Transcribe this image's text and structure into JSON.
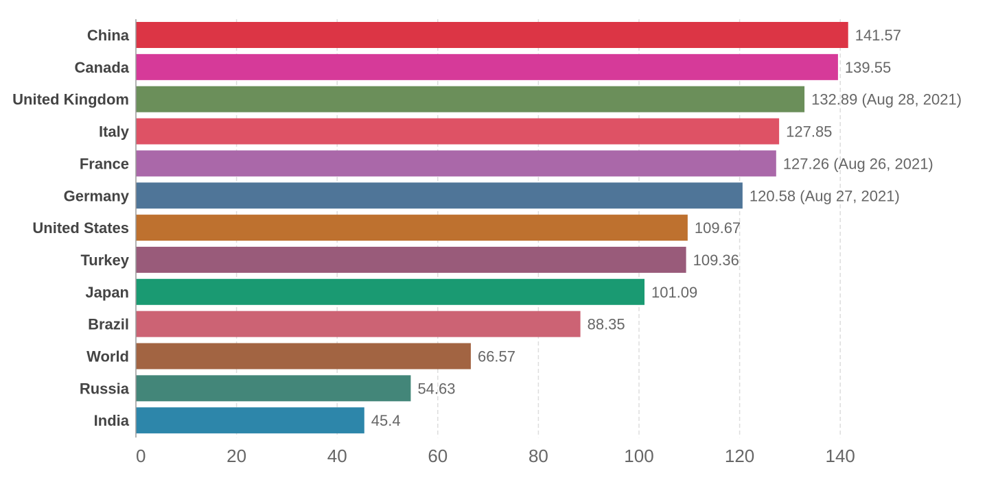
{
  "chart_data": {
    "type": "bar",
    "orientation": "horizontal",
    "title": "",
    "xlabel": "",
    "ylabel": "",
    "xlim": [
      0,
      142
    ],
    "ticks": [
      0,
      20,
      40,
      60,
      80,
      100,
      120,
      140
    ],
    "grid": true,
    "legend": "none",
    "bars": [
      {
        "category": "China",
        "value": 141.57,
        "label": "141.57",
        "color": "#dc3545"
      },
      {
        "category": "Canada",
        "value": 139.55,
        "label": "139.55",
        "color": "#d63a99"
      },
      {
        "category": "United Kingdom",
        "value": 132.89,
        "label": "132.89 (Aug 28, 2021)",
        "color": "#6b8f5a"
      },
      {
        "category": "Italy",
        "value": 127.85,
        "label": "127.85",
        "color": "#de5265"
      },
      {
        "category": "France",
        "value": 127.26,
        "label": "127.26 (Aug 26, 2021)",
        "color": "#aa68a9"
      },
      {
        "category": "Germany",
        "value": 120.58,
        "label": "120.58 (Aug 27, 2021)",
        "color": "#4f7598"
      },
      {
        "category": "United States",
        "value": 109.67,
        "label": "109.67",
        "color": "#be712f"
      },
      {
        "category": "Turkey",
        "value": 109.36,
        "label": "109.36",
        "color": "#995b7a"
      },
      {
        "category": "Japan",
        "value": 101.09,
        "label": "101.09",
        "color": "#1a9a72"
      },
      {
        "category": "Brazil",
        "value": 88.35,
        "label": "88.35",
        "color": "#cc6374"
      },
      {
        "category": "World",
        "value": 66.57,
        "label": "66.57",
        "color": "#a26442"
      },
      {
        "category": "Russia",
        "value": 54.63,
        "label": "54.63",
        "color": "#438679"
      },
      {
        "category": "India",
        "value": 45.4,
        "label": "45.4",
        "color": "#2d86aa"
      }
    ]
  }
}
